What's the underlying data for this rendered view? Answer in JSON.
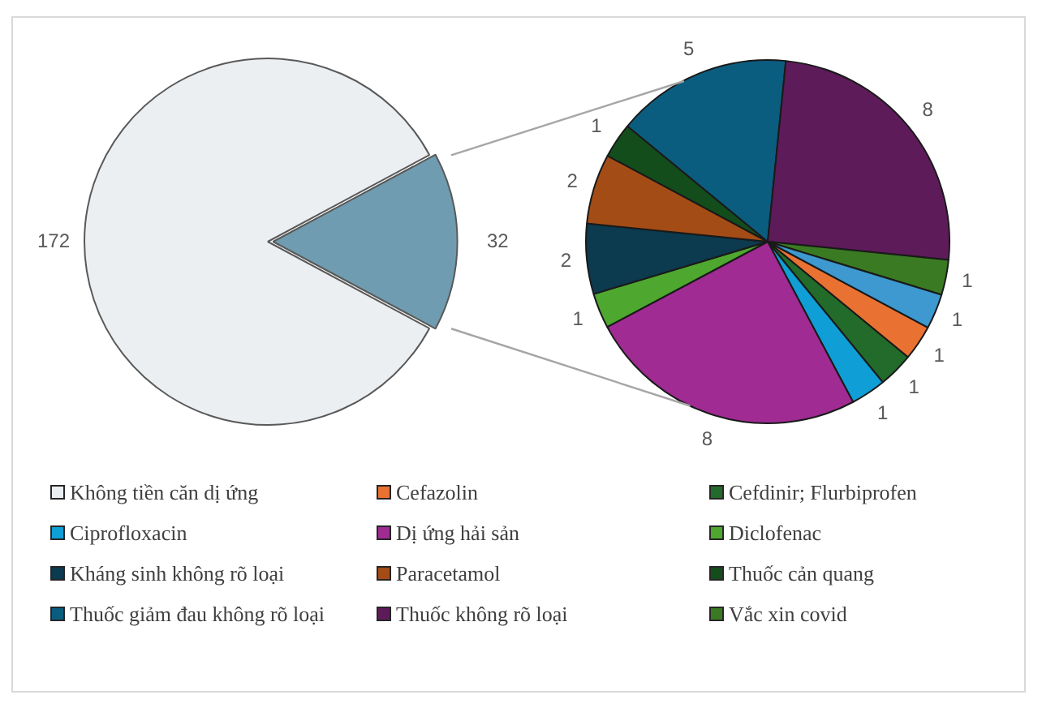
{
  "chart_data": [
    {
      "type": "pie",
      "categories": [
        "Không tiền căn dị ứng",
        null
      ],
      "values": [
        172,
        32
      ],
      "colors": [
        "#eceff1",
        "#6f9cb0"
      ],
      "data_labels": true,
      "legend": "bottom"
    },
    {
      "type": "pie",
      "categories": [
        "Cefazolin",
        "Cefdinir; Flurbiprofen",
        "Ciprofloxacin",
        "Dị ứng hải sản",
        "Diclofenac",
        "Kháng sinh không rõ loại",
        "Paracetamol",
        "Thuốc cản quang",
        "Thuốc giảm đau không rõ loại",
        "Thuốc không rõ loại",
        "Vắc xin covid",
        null
      ],
      "values": [
        1,
        1,
        1,
        8,
        1,
        2,
        2,
        1,
        5,
        8,
        1,
        1
      ],
      "colors": [
        "#e97132",
        "#226b2a",
        "#0f9ed5",
        "#a02b93",
        "#4ea72e",
        "#0c3a4e",
        "#a44c16",
        "#144d1c",
        "#0b5d80",
        "#5e1b5a",
        "#3a7a22",
        "#3d99cf"
      ],
      "data_labels": true,
      "legend": "bottom"
    }
  ]
}
